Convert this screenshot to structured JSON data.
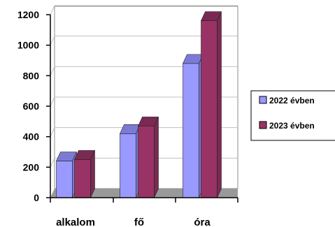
{
  "chart_data": {
    "type": "bar",
    "stacked_3d_columns": true,
    "categories": [
      "alkalom",
      "fő",
      "óra"
    ],
    "series": [
      {
        "name": "2022 évben",
        "values": [
          240,
          420,
          880
        ],
        "color": "#9999ff",
        "top_color": "#7b7bd6"
      },
      {
        "name": "2023 évben",
        "values": [
          250,
          470,
          1160
        ],
        "color": "#993366",
        "top_color": "#7a2a52"
      }
    ],
    "yticks": [
      "0",
      "200",
      "400",
      "600",
      "800",
      "1000",
      "1200"
    ],
    "ylim": [
      0,
      1200
    ],
    "grid": true,
    "legend_position": "right",
    "colors": {
      "floor": "#999999",
      "wall": "#ffffff",
      "grid": "#c0c0c0",
      "axis": "#000000",
      "legend_border": "#000000"
    }
  }
}
